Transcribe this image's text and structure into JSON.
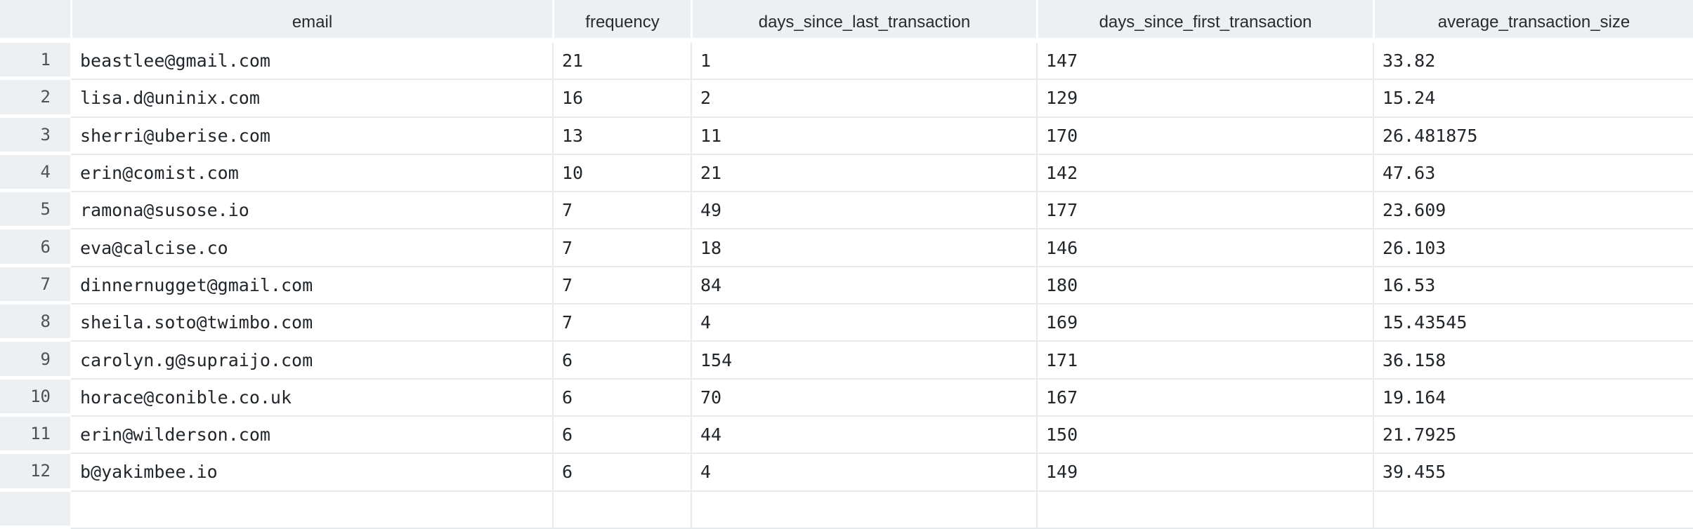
{
  "table": {
    "columns": [
      "email",
      "frequency",
      "days_since_last_transaction",
      "days_since_first_transaction",
      "average_transaction_size"
    ],
    "rows": [
      {
        "index": "1",
        "email": "beastlee@gmail.com",
        "frequency": "21",
        "days_since_last_transaction": "1",
        "days_since_first_transaction": "147",
        "average_transaction_size": "33.82"
      },
      {
        "index": "2",
        "email": "lisa.d@uninix.com",
        "frequency": "16",
        "days_since_last_transaction": "2",
        "days_since_first_transaction": "129",
        "average_transaction_size": "15.24"
      },
      {
        "index": "3",
        "email": "sherri@uberise.com",
        "frequency": "13",
        "days_since_last_transaction": "11",
        "days_since_first_transaction": "170",
        "average_transaction_size": "26.481875"
      },
      {
        "index": "4",
        "email": "erin@comist.com",
        "frequency": "10",
        "days_since_last_transaction": "21",
        "days_since_first_transaction": "142",
        "average_transaction_size": "47.63"
      },
      {
        "index": "5",
        "email": "ramona@susose.io",
        "frequency": "7",
        "days_since_last_transaction": "49",
        "days_since_first_transaction": "177",
        "average_transaction_size": "23.609"
      },
      {
        "index": "6",
        "email": "eva@calcise.co",
        "frequency": "7",
        "days_since_last_transaction": "18",
        "days_since_first_transaction": "146",
        "average_transaction_size": "26.103"
      },
      {
        "index": "7",
        "email": "dinnernugget@gmail.com",
        "frequency": "7",
        "days_since_last_transaction": "84",
        "days_since_first_transaction": "180",
        "average_transaction_size": "16.53"
      },
      {
        "index": "8",
        "email": "sheila.soto@twimbo.com",
        "frequency": "7",
        "days_since_last_transaction": "4",
        "days_since_first_transaction": "169",
        "average_transaction_size": "15.43545"
      },
      {
        "index": "9",
        "email": "carolyn.g@supraijo.com",
        "frequency": "6",
        "days_since_last_transaction": "154",
        "days_since_first_transaction": "171",
        "average_transaction_size": "36.158"
      },
      {
        "index": "10",
        "email": "horace@conible.co.uk",
        "frequency": "6",
        "days_since_last_transaction": "70",
        "days_since_first_transaction": "167",
        "average_transaction_size": "19.164"
      },
      {
        "index": "11",
        "email": "erin@wilderson.com",
        "frequency": "6",
        "days_since_last_transaction": "44",
        "days_since_first_transaction": "150",
        "average_transaction_size": "21.7925"
      },
      {
        "index": "12",
        "email": "b@yakimbee.io",
        "frequency": "6",
        "days_since_last_transaction": "4",
        "days_since_first_transaction": "149",
        "average_transaction_size": "39.455"
      }
    ]
  },
  "colors": {
    "header_bg": "#edf0f2",
    "cell_bg": "#ffffff",
    "divider": "#e7eaed",
    "header_text": "#262b31",
    "data_text": "#21262b",
    "row_number_text": "#4c525a"
  }
}
